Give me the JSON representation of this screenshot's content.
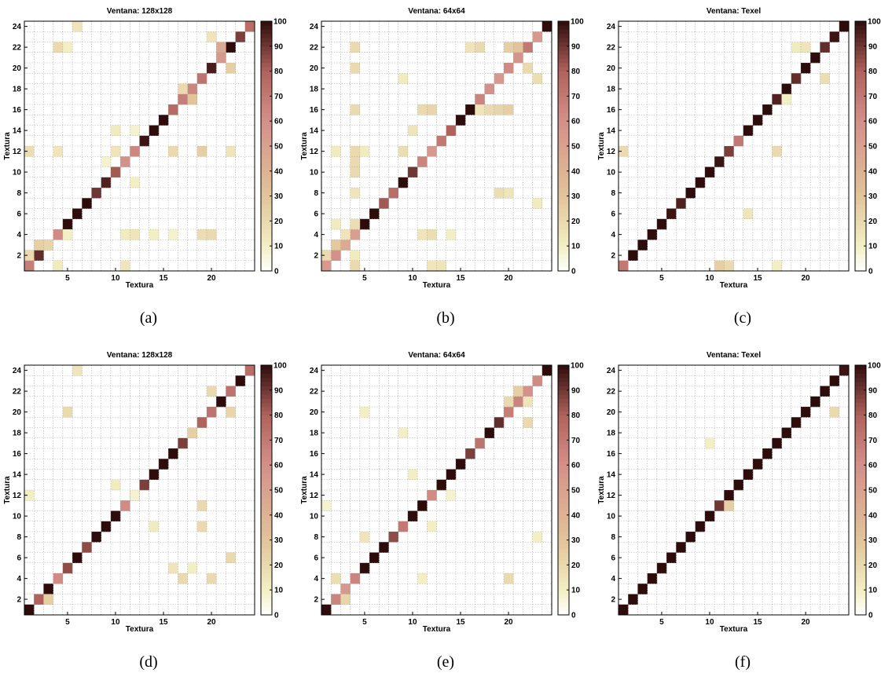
{
  "colormap": {
    "stops": [
      {
        "v": 0,
        "color": "#ffffff"
      },
      {
        "v": 10,
        "color": "#f3efc4"
      },
      {
        "v": 30,
        "color": "#e2c49a"
      },
      {
        "v": 60,
        "color": "#d4908a"
      },
      {
        "v": 80,
        "color": "#b0625c"
      },
      {
        "v": 100,
        "color": "#2e0c0c"
      }
    ]
  },
  "chart_data": [
    {
      "type": "heatmap",
      "caption": "(a)",
      "title": "Ventana: 128x128",
      "xlabel": "Textura",
      "ylabel": "Textura",
      "xticks": [
        5,
        10,
        15,
        20
      ],
      "yticks": [
        2,
        4,
        6,
        8,
        10,
        12,
        14,
        16,
        18,
        20,
        22,
        24
      ],
      "xlim": [
        1,
        24
      ],
      "ylim": [
        1,
        24
      ],
      "grid": true,
      "colorbar": {
        "ticks": [
          0,
          10,
          20,
          30,
          40,
          50,
          60,
          70,
          80,
          90,
          100
        ],
        "top_label": "100",
        "range": [
          0,
          100
        ]
      },
      "diagonal": [
        68,
        92,
        22,
        62,
        100,
        100,
        100,
        90,
        95,
        82,
        60,
        64,
        98,
        100,
        100,
        76,
        68,
        64,
        72,
        96,
        55,
        100,
        88,
        75
      ],
      "off_diagonal": [
        [
          1,
          2,
          20
        ],
        [
          4,
          1,
          12
        ],
        [
          2,
          3,
          25
        ],
        [
          1,
          12,
          18
        ],
        [
          4,
          12,
          15
        ],
        [
          4,
          22,
          20
        ],
        [
          5,
          22,
          10
        ],
        [
          6,
          24,
          15
        ],
        [
          9,
          11,
          8
        ],
        [
          10,
          12,
          15
        ],
        [
          10,
          14,
          12
        ],
        [
          11,
          1,
          14
        ],
        [
          11,
          4,
          12
        ],
        [
          12,
          4,
          15
        ],
        [
          12,
          9,
          10
        ],
        [
          12,
          14,
          8
        ],
        [
          16,
          12,
          20
        ],
        [
          17,
          18,
          20
        ],
        [
          18,
          17,
          30
        ],
        [
          19,
          4,
          18
        ],
        [
          19,
          12,
          25
        ],
        [
          20,
          4,
          20
        ],
        [
          20,
          23,
          15
        ],
        [
          21,
          22,
          45
        ],
        [
          22,
          20,
          25
        ],
        [
          22,
          12,
          15
        ],
        [
          5,
          4,
          10
        ],
        [
          14,
          4,
          10
        ],
        [
          16,
          4,
          8
        ]
      ]
    },
    {
      "type": "heatmap",
      "caption": "(b)",
      "title": "Ventana: 64x64",
      "xlabel": "Textura",
      "ylabel": "Textura",
      "xticks": [
        5,
        10,
        15,
        20
      ],
      "yticks": [
        2,
        4,
        6,
        8,
        10,
        12,
        14,
        16,
        18,
        20,
        22,
        24
      ],
      "xlim": [
        1,
        24
      ],
      "ylim": [
        1,
        24
      ],
      "grid": true,
      "colorbar": {
        "ticks": [
          0,
          10,
          20,
          30,
          40,
          50,
          60,
          70,
          80,
          90,
          100
        ],
        "top_label": "100",
        "range": [
          0,
          100
        ]
      },
      "diagonal": [
        55,
        60,
        45,
        52,
        100,
        100,
        82,
        75,
        100,
        90,
        65,
        55,
        70,
        80,
        100,
        100,
        65,
        60,
        55,
        62,
        58,
        70,
        55,
        100
      ],
      "off_diagonal": [
        [
          1,
          2,
          20
        ],
        [
          2,
          3,
          28
        ],
        [
          4,
          1,
          20
        ],
        [
          4,
          2,
          12
        ],
        [
          4,
          5,
          18
        ],
        [
          4,
          8,
          15
        ],
        [
          4,
          10,
          20
        ],
        [
          4,
          11,
          20
        ],
        [
          4,
          12,
          20
        ],
        [
          4,
          16,
          20
        ],
        [
          4,
          20,
          20
        ],
        [
          4,
          22,
          20
        ],
        [
          2,
          5,
          12
        ],
        [
          3,
          4,
          15
        ],
        [
          5,
          12,
          12
        ],
        [
          9,
          12,
          18
        ],
        [
          9,
          19,
          12
        ],
        [
          10,
          14,
          15
        ],
        [
          11,
          4,
          15
        ],
        [
          11,
          16,
          20
        ],
        [
          12,
          16,
          22
        ],
        [
          12,
          4,
          18
        ],
        [
          12,
          1,
          14
        ],
        [
          13,
          1,
          15
        ],
        [
          14,
          4,
          10
        ],
        [
          16,
          22,
          15
        ],
        [
          17,
          22,
          20
        ],
        [
          17,
          16,
          15
        ],
        [
          18,
          16,
          20
        ],
        [
          19,
          16,
          22
        ],
        [
          19,
          8,
          18
        ],
        [
          20,
          22,
          25
        ],
        [
          20,
          16,
          25
        ],
        [
          20,
          8,
          15
        ],
        [
          21,
          22,
          30
        ],
        [
          22,
          20,
          20
        ],
        [
          23,
          19,
          18
        ],
        [
          23,
          7,
          12
        ],
        [
          2,
          12,
          12
        ]
      ]
    },
    {
      "type": "heatmap",
      "caption": "(c)",
      "title": "Ventana: Texel",
      "xlabel": "Textura",
      "ylabel": "Textura",
      "xticks": [
        5,
        10,
        15,
        20
      ],
      "yticks": [
        2,
        4,
        6,
        8,
        10,
        12,
        14,
        16,
        18,
        20,
        22,
        24
      ],
      "xlim": [
        1,
        24
      ],
      "ylim": [
        1,
        24
      ],
      "grid": true,
      "colorbar": {
        "ticks": [
          0,
          10,
          20,
          30,
          40,
          50,
          60,
          70,
          80,
          90,
          100
        ],
        "top_label": "100",
        "range": [
          0,
          100
        ]
      },
      "diagonal": [
        70,
        100,
        100,
        100,
        100,
        98,
        95,
        100,
        100,
        100,
        98,
        88,
        70,
        100,
        100,
        100,
        95,
        100,
        92,
        100,
        100,
        92,
        98,
        100
      ],
      "off_diagonal": [
        [
          1,
          12,
          20
        ],
        [
          11,
          1,
          25
        ],
        [
          12,
          1,
          20
        ],
        [
          14,
          6,
          15
        ],
        [
          17,
          12,
          20
        ],
        [
          19,
          22,
          12
        ],
        [
          20,
          22,
          15
        ],
        [
          22,
          19,
          18
        ],
        [
          17,
          1,
          10
        ],
        [
          18,
          17,
          10
        ]
      ]
    },
    {
      "type": "heatmap",
      "caption": "(d)",
      "title": "Ventana: 128x128",
      "xlabel": "Textura",
      "ylabel": "Textura",
      "xticks": [
        5,
        10,
        15,
        20
      ],
      "yticks": [
        2,
        4,
        6,
        8,
        10,
        12,
        14,
        16,
        18,
        20,
        22,
        24
      ],
      "xlim": [
        1,
        24
      ],
      "ylim": [
        1,
        24
      ],
      "grid": true,
      "colorbar": {
        "ticks": [
          0,
          10,
          20,
          30,
          40,
          50,
          60,
          70,
          80,
          90,
          100
        ],
        "top_label": "100",
        "range": [
          0,
          100
        ]
      },
      "diagonal": [
        100,
        80,
        100,
        62,
        85,
        100,
        85,
        100,
        100,
        100,
        62,
        92,
        88,
        100,
        100,
        100,
        88,
        100,
        80,
        72,
        100,
        72,
        100,
        75
      ],
      "off_diagonal": [
        [
          3,
          2,
          25
        ],
        [
          5,
          20,
          20
        ],
        [
          6,
          24,
          15
        ],
        [
          10,
          13,
          12
        ],
        [
          14,
          9,
          12
        ],
        [
          16,
          5,
          15
        ],
        [
          17,
          4,
          20
        ],
        [
          18,
          18,
          25
        ],
        [
          19,
          11,
          20
        ],
        [
          19,
          9,
          20
        ],
        [
          20,
          4,
          20
        ],
        [
          20,
          22,
          20
        ],
        [
          22,
          6,
          20
        ],
        [
          22,
          20,
          22
        ],
        [
          1,
          12,
          10
        ],
        [
          12,
          12,
          8
        ],
        [
          18,
          5,
          10
        ]
      ]
    },
    {
      "type": "heatmap",
      "caption": "(e)",
      "title": "Ventana: 64x64",
      "xlabel": "Textura",
      "ylabel": "Textura",
      "xticks": [
        5,
        10,
        15,
        20
      ],
      "yticks": [
        2,
        4,
        6,
        8,
        10,
        12,
        14,
        16,
        18,
        20,
        22,
        24
      ],
      "xlim": [
        1,
        24
      ],
      "ylim": [
        1,
        24
      ],
      "grid": true,
      "colorbar": {
        "ticks": [
          0,
          10,
          20,
          30,
          40,
          50,
          60,
          70,
          80,
          90,
          100
        ],
        "top_label": "100",
        "range": [
          0,
          100
        ]
      },
      "diagonal": [
        100,
        65,
        55,
        65,
        100,
        100,
        100,
        85,
        70,
        100,
        100,
        62,
        100,
        100,
        100,
        88,
        72,
        100,
        92,
        68,
        65,
        60,
        62,
        100
      ],
      "off_diagonal": [
        [
          3,
          2,
          22
        ],
        [
          2,
          4,
          18
        ],
        [
          5,
          8,
          15
        ],
        [
          10,
          14,
          10
        ],
        [
          11,
          4,
          10
        ],
        [
          12,
          9,
          10
        ],
        [
          9,
          18,
          10
        ],
        [
          14,
          12,
          8
        ],
        [
          20,
          4,
          20
        ],
        [
          20,
          21,
          20
        ],
        [
          21,
          22,
          25
        ],
        [
          22,
          19,
          20
        ],
        [
          22,
          21,
          15
        ],
        [
          23,
          8,
          10
        ],
        [
          5,
          20,
          10
        ],
        [
          1,
          11,
          8
        ]
      ]
    },
    {
      "type": "heatmap",
      "caption": "(f)",
      "title": "Ventana: Texel",
      "xlabel": "Textura",
      "ylabel": "Textura",
      "xticks": [
        5,
        10,
        15,
        20
      ],
      "yticks": [
        2,
        4,
        6,
        8,
        10,
        12,
        14,
        16,
        18,
        20,
        22,
        24
      ],
      "xlim": [
        1,
        24
      ],
      "ylim": [
        1,
        24
      ],
      "grid": true,
      "colorbar": {
        "ticks": [
          0,
          10,
          20,
          30,
          40,
          50,
          60,
          70,
          80,
          90,
          100
        ],
        "top_label": "100",
        "range": [
          0,
          100
        ]
      },
      "diagonal": [
        100,
        100,
        100,
        100,
        100,
        100,
        100,
        100,
        100,
        100,
        90,
        100,
        100,
        100,
        100,
        100,
        100,
        100,
        100,
        100,
        100,
        100,
        100,
        98
      ],
      "off_diagonal": [
        [
          23,
          20,
          20
        ],
        [
          10,
          17,
          10
        ],
        [
          12,
          11,
          25
        ]
      ]
    }
  ]
}
